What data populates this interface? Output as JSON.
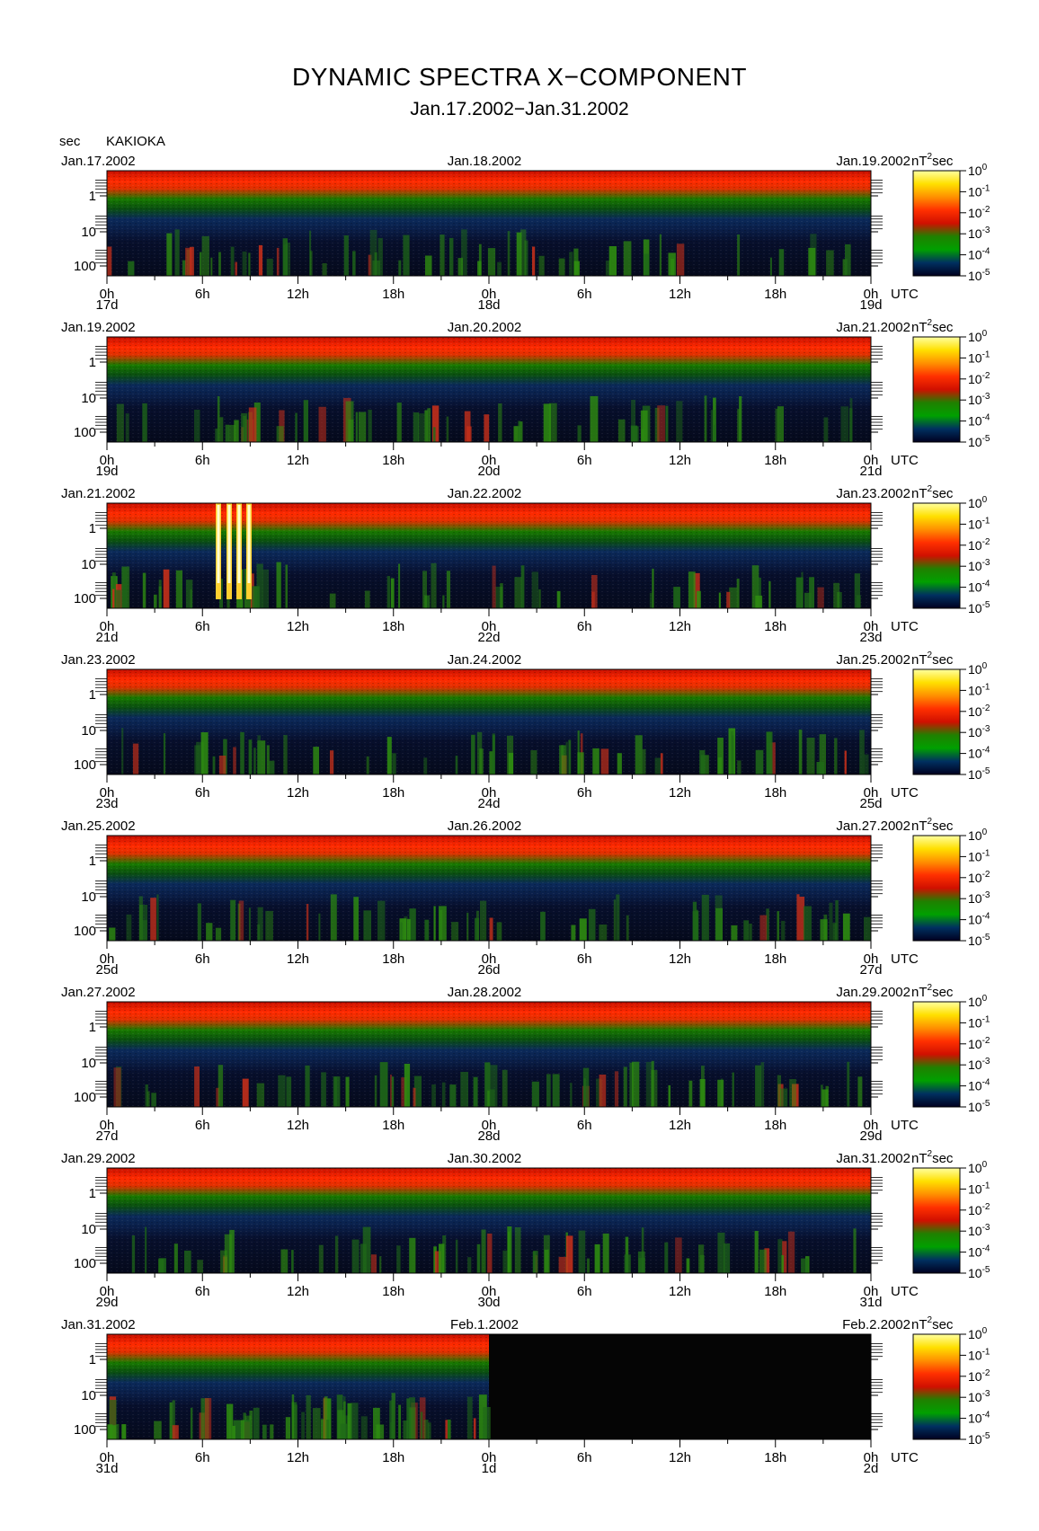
{
  "header": {
    "title": "DYNAMIC SPECTRA X−COMPONENT",
    "subtitle": "Jan.17.2002−Jan.31.2002",
    "unit_label": "sec",
    "station": "KAKIOKA"
  },
  "colorbar": {
    "unit": "nT",
    "unit_exp": "2",
    "unit_suffix": "sec",
    "tick_bases": [
      "10",
      "10",
      "10",
      "10",
      "10",
      "10"
    ],
    "tick_exps": [
      "0",
      "-1",
      "-2",
      "-3",
      "-4",
      "-5"
    ],
    "colors": [
      "#ffffa0",
      "#ffe000",
      "#ff9000",
      "#ff3000",
      "#d01000",
      "#208000",
      "#00a000",
      "#003060",
      "#000020"
    ]
  },
  "chart_data": {
    "type": "heatmap",
    "y_axis": {
      "label": "sec",
      "scale": "log",
      "ticks": [
        "1",
        "10",
        "100"
      ]
    },
    "x_axis": {
      "tick_labels": [
        "0h",
        "6h",
        "12h",
        "18h",
        "0h",
        "6h",
        "12h",
        "18h",
        "0h"
      ],
      "unit": "UTC"
    },
    "color_scale": {
      "unit": "nT²sec",
      "scale": "log",
      "range": [
        1e-05,
        1
      ]
    },
    "panels": [
      {
        "left_date": "Jan.17.2002",
        "mid_date": "Jan.18.2002",
        "right_date": "Jan.19.2002",
        "days": [
          "17d",
          "18d",
          "19d"
        ],
        "data_until_fraction": 1.0
      },
      {
        "left_date": "Jan.19.2002",
        "mid_date": "Jan.20.2002",
        "right_date": "Jan.21.2002",
        "days": [
          "19d",
          "20d",
          "21d"
        ],
        "data_until_fraction": 1.0
      },
      {
        "left_date": "Jan.21.2002",
        "mid_date": "Jan.22.2002",
        "right_date": "Jan.23.2002",
        "days": [
          "21d",
          "22d",
          "23d"
        ],
        "data_until_fraction": 1.0
      },
      {
        "left_date": "Jan.23.2002",
        "mid_date": "Jan.24.2002",
        "right_date": "Jan.25.2002",
        "days": [
          "23d",
          "24d",
          "25d"
        ],
        "data_until_fraction": 1.0
      },
      {
        "left_date": "Jan.25.2002",
        "mid_date": "Jan.26.2002",
        "right_date": "Jan.27.2002",
        "days": [
          "25d",
          "26d",
          "27d"
        ],
        "data_until_fraction": 1.0
      },
      {
        "left_date": "Jan.27.2002",
        "mid_date": "Jan.28.2002",
        "right_date": "Jan.29.2002",
        "days": [
          "27d",
          "28d",
          "29d"
        ],
        "data_until_fraction": 1.0
      },
      {
        "left_date": "Jan.29.2002",
        "mid_date": "Jan.30.2002",
        "right_date": "Jan.31.2002",
        "days": [
          "29d",
          "30d",
          "31d"
        ],
        "data_until_fraction": 1.0
      },
      {
        "left_date": "Jan.31.2002",
        "mid_date": "Feb.1.2002",
        "right_date": "Feb.2.2002",
        "days": [
          "31d",
          "1d",
          "2d"
        ],
        "data_until_fraction": 0.5
      }
    ]
  }
}
